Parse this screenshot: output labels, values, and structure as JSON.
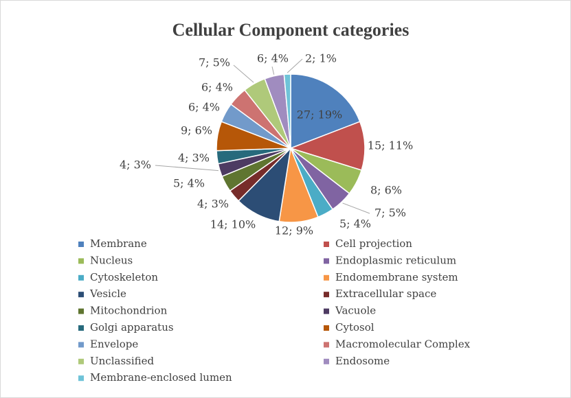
{
  "chart_data": {
    "type": "pie",
    "title": "Cellular Component categories",
    "categories": [
      "Membrane",
      "Cell projection",
      "Nucleus",
      "Endoplasmic reticulum",
      "Cytoskeleton",
      "Endomembrane system",
      "Vesicle",
      "Extracellular space",
      "Mitochondrion",
      "Vacuole",
      "Golgi apparatus",
      "Cytosol",
      "Envelope",
      "Macromolecular Complex",
      "Unclassified",
      "Endosome",
      "Membrane-enclosed lumen"
    ],
    "values": [
      27,
      15,
      8,
      7,
      5,
      12,
      14,
      4,
      5,
      4,
      4,
      9,
      6,
      6,
      7,
      6,
      2
    ],
    "value_labels": [
      "27; 19%",
      "15; 11%",
      "8; 6%",
      "7; 5%",
      "5; 4%",
      "12; 9%",
      "14; 10%",
      "4; 3%",
      "5; 4%",
      "4; 3%",
      "4; 3%",
      "9; 6%",
      "6; 4%",
      "6; 4%",
      "7; 5%",
      "6; 4%",
      "2; 1%"
    ],
    "colors": [
      "#4f81bd",
      "#c0504d",
      "#9bbb59",
      "#8064a2",
      "#4bacc6",
      "#f79646",
      "#2c4d75",
      "#772c2a",
      "#5f7530",
      "#4d3b62",
      "#276a7c",
      "#b65708",
      "#729aca",
      "#cd7371",
      "#afc97a",
      "#a08cbf",
      "#6fc3d8"
    ]
  }
}
